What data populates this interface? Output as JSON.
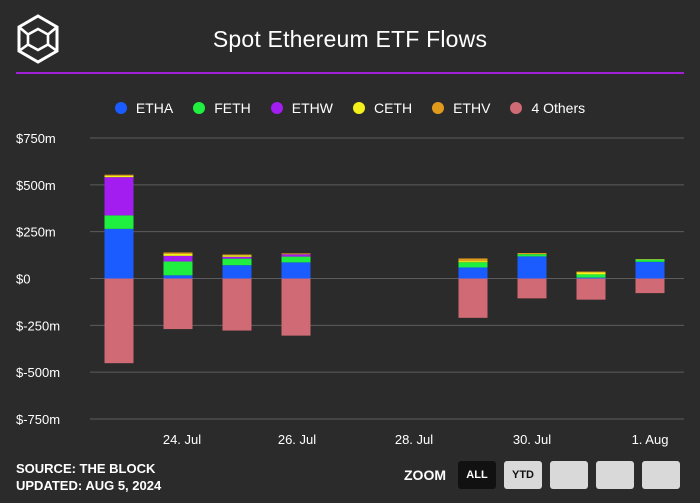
{
  "title": "Spot Ethereum ETF Flows",
  "footer": {
    "source": "SOURCE: THE BLOCK",
    "updated": "UPDATED: AUG 5, 2024"
  },
  "zoom": {
    "label": "ZOOM",
    "buttons": [
      "ALL",
      "YTD",
      "",
      "",
      ""
    ],
    "active": "ALL"
  },
  "colors": {
    "background": "#2b2b2b",
    "accent_rule": "#a020d8",
    "ETHA": "#1a5cff",
    "FETH": "#1fef3f",
    "ETHW": "#a31cf0",
    "CETH": "#f2f21a",
    "ETHV": "#e09a1c",
    "4 Others": "#d06a74"
  },
  "chart_data": {
    "type": "bar",
    "stacked": true,
    "x_tick_labels": [
      "24. Jul",
      "26. Jul",
      "28. Jul",
      "30. Jul",
      "1. Aug"
    ],
    "y_tick_labels": [
      "$750m",
      "$500m",
      "$250m",
      "$0",
      "$-250m",
      "$-500m",
      "$-750m"
    ],
    "ylim": [
      -750,
      750
    ],
    "y_unit": "$m",
    "grid": true,
    "legend_position": "top-center",
    "categories": [
      "23 Jul",
      "24 Jul",
      "25 Jul",
      "26 Jul",
      "29 Jul",
      "30 Jul",
      "31 Jul",
      "1 Aug"
    ],
    "series": [
      {
        "name": "ETHA",
        "values": [
          265,
          17,
          71,
          86,
          59,
          118,
          5,
          89
        ]
      },
      {
        "name": "FETH",
        "values": [
          72,
          74,
          35,
          31,
          28,
          12,
          17,
          13
        ]
      },
      {
        "name": "ETHW",
        "values": [
          204,
          30,
          10,
          12,
          0,
          0,
          0,
          0
        ]
      },
      {
        "name": "CETH",
        "values": [
          8,
          10,
          8,
          0,
          6,
          0,
          10,
          0
        ]
      },
      {
        "name": "ETHV",
        "values": [
          5,
          8,
          4,
          5,
          14,
          6,
          5,
          2
        ]
      },
      {
        "name": "4 Others",
        "values": [
          -452,
          -270,
          -278,
          -305,
          -210,
          -106,
          -113,
          -78
        ]
      }
    ]
  }
}
